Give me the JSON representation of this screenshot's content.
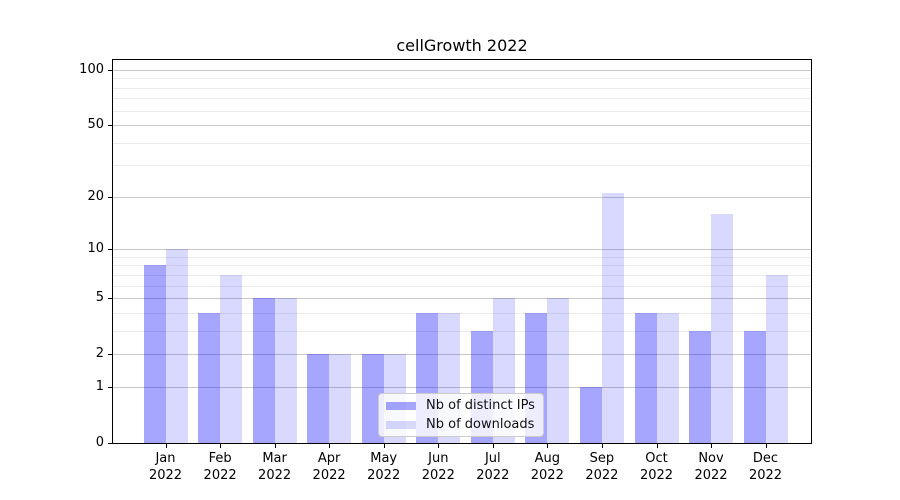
{
  "chart_data": {
    "type": "bar",
    "title": "cellGrowth 2022",
    "categories": [
      {
        "month": "Jan",
        "year": "2022"
      },
      {
        "month": "Feb",
        "year": "2022"
      },
      {
        "month": "Mar",
        "year": "2022"
      },
      {
        "month": "Apr",
        "year": "2022"
      },
      {
        "month": "May",
        "year": "2022"
      },
      {
        "month": "Jun",
        "year": "2022"
      },
      {
        "month": "Jul",
        "year": "2022"
      },
      {
        "month": "Aug",
        "year": "2022"
      },
      {
        "month": "Sep",
        "year": "2022"
      },
      {
        "month": "Oct",
        "year": "2022"
      },
      {
        "month": "Nov",
        "year": "2022"
      },
      {
        "month": "Dec",
        "year": "2022"
      }
    ],
    "series": [
      {
        "name": "Nb of distinct IPs",
        "color": "#0000ff",
        "alpha": 0.35,
        "values": [
          8,
          4,
          5,
          2,
          2,
          4,
          3,
          4,
          1,
          4,
          3,
          3
        ]
      },
      {
        "name": "Nb of downloads",
        "color": "#0000ff",
        "alpha": 0.15,
        "values": [
          10,
          7,
          5,
          2,
          2,
          4,
          5,
          5,
          21,
          4,
          16,
          7
        ]
      }
    ],
    "y_axis": {
      "scale": "log10(1+x)",
      "ticks": [
        0,
        1,
        2,
        5,
        10,
        20,
        50,
        100
      ],
      "minor_gridlines": [
        3,
        4,
        6,
        7,
        8,
        9,
        30,
        40,
        60,
        70,
        80,
        90
      ],
      "max": 113.2
    },
    "grid": {
      "major_color": "#c9c9c9",
      "minor_color": "#ebebeb"
    },
    "legend_position": "lower center",
    "background_color": "#ffffff"
  }
}
